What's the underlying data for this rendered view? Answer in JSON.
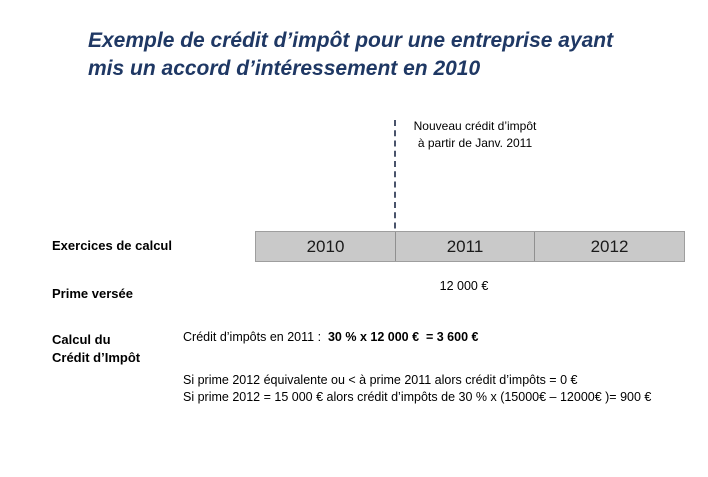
{
  "slide": {
    "title_line1": "Exemple de crédit d’impôt pour une entreprise ayant",
    "title_line2": "mis un accord d’intéressement en 2010",
    "title_color": "#1f3864"
  },
  "annotation": {
    "line1": "Nouveau crédit d’impôt",
    "line2": "à partir de Janv. 2011"
  },
  "timeline": {
    "years": [
      "2010",
      "2011",
      "2012"
    ],
    "bar_color": "#c9c9c9",
    "border_color": "#9e9e9e"
  },
  "rows": {
    "exercices_label": "Exercices de calcul",
    "prime_label": "Prime versée",
    "calcul_label_line1": "Calcul du",
    "calcul_label_line2": "Crédit d’Impôt",
    "prime_2011_value": "12 000 €"
  },
  "calc": {
    "line1_normal": "Crédit d’impôts en 2011 :  ",
    "line1_bold": "30 % x 12 000 €  = 3 600 €",
    "line2": "Si prime 2012 équivalente ou < à prime 2011 alors crédit d’impôts = 0 €",
    "line3": "Si prime 2012 = 15 000 € alors crédit d’impôts de 30 % x (15000€ – 12000€ )= 900 €"
  }
}
